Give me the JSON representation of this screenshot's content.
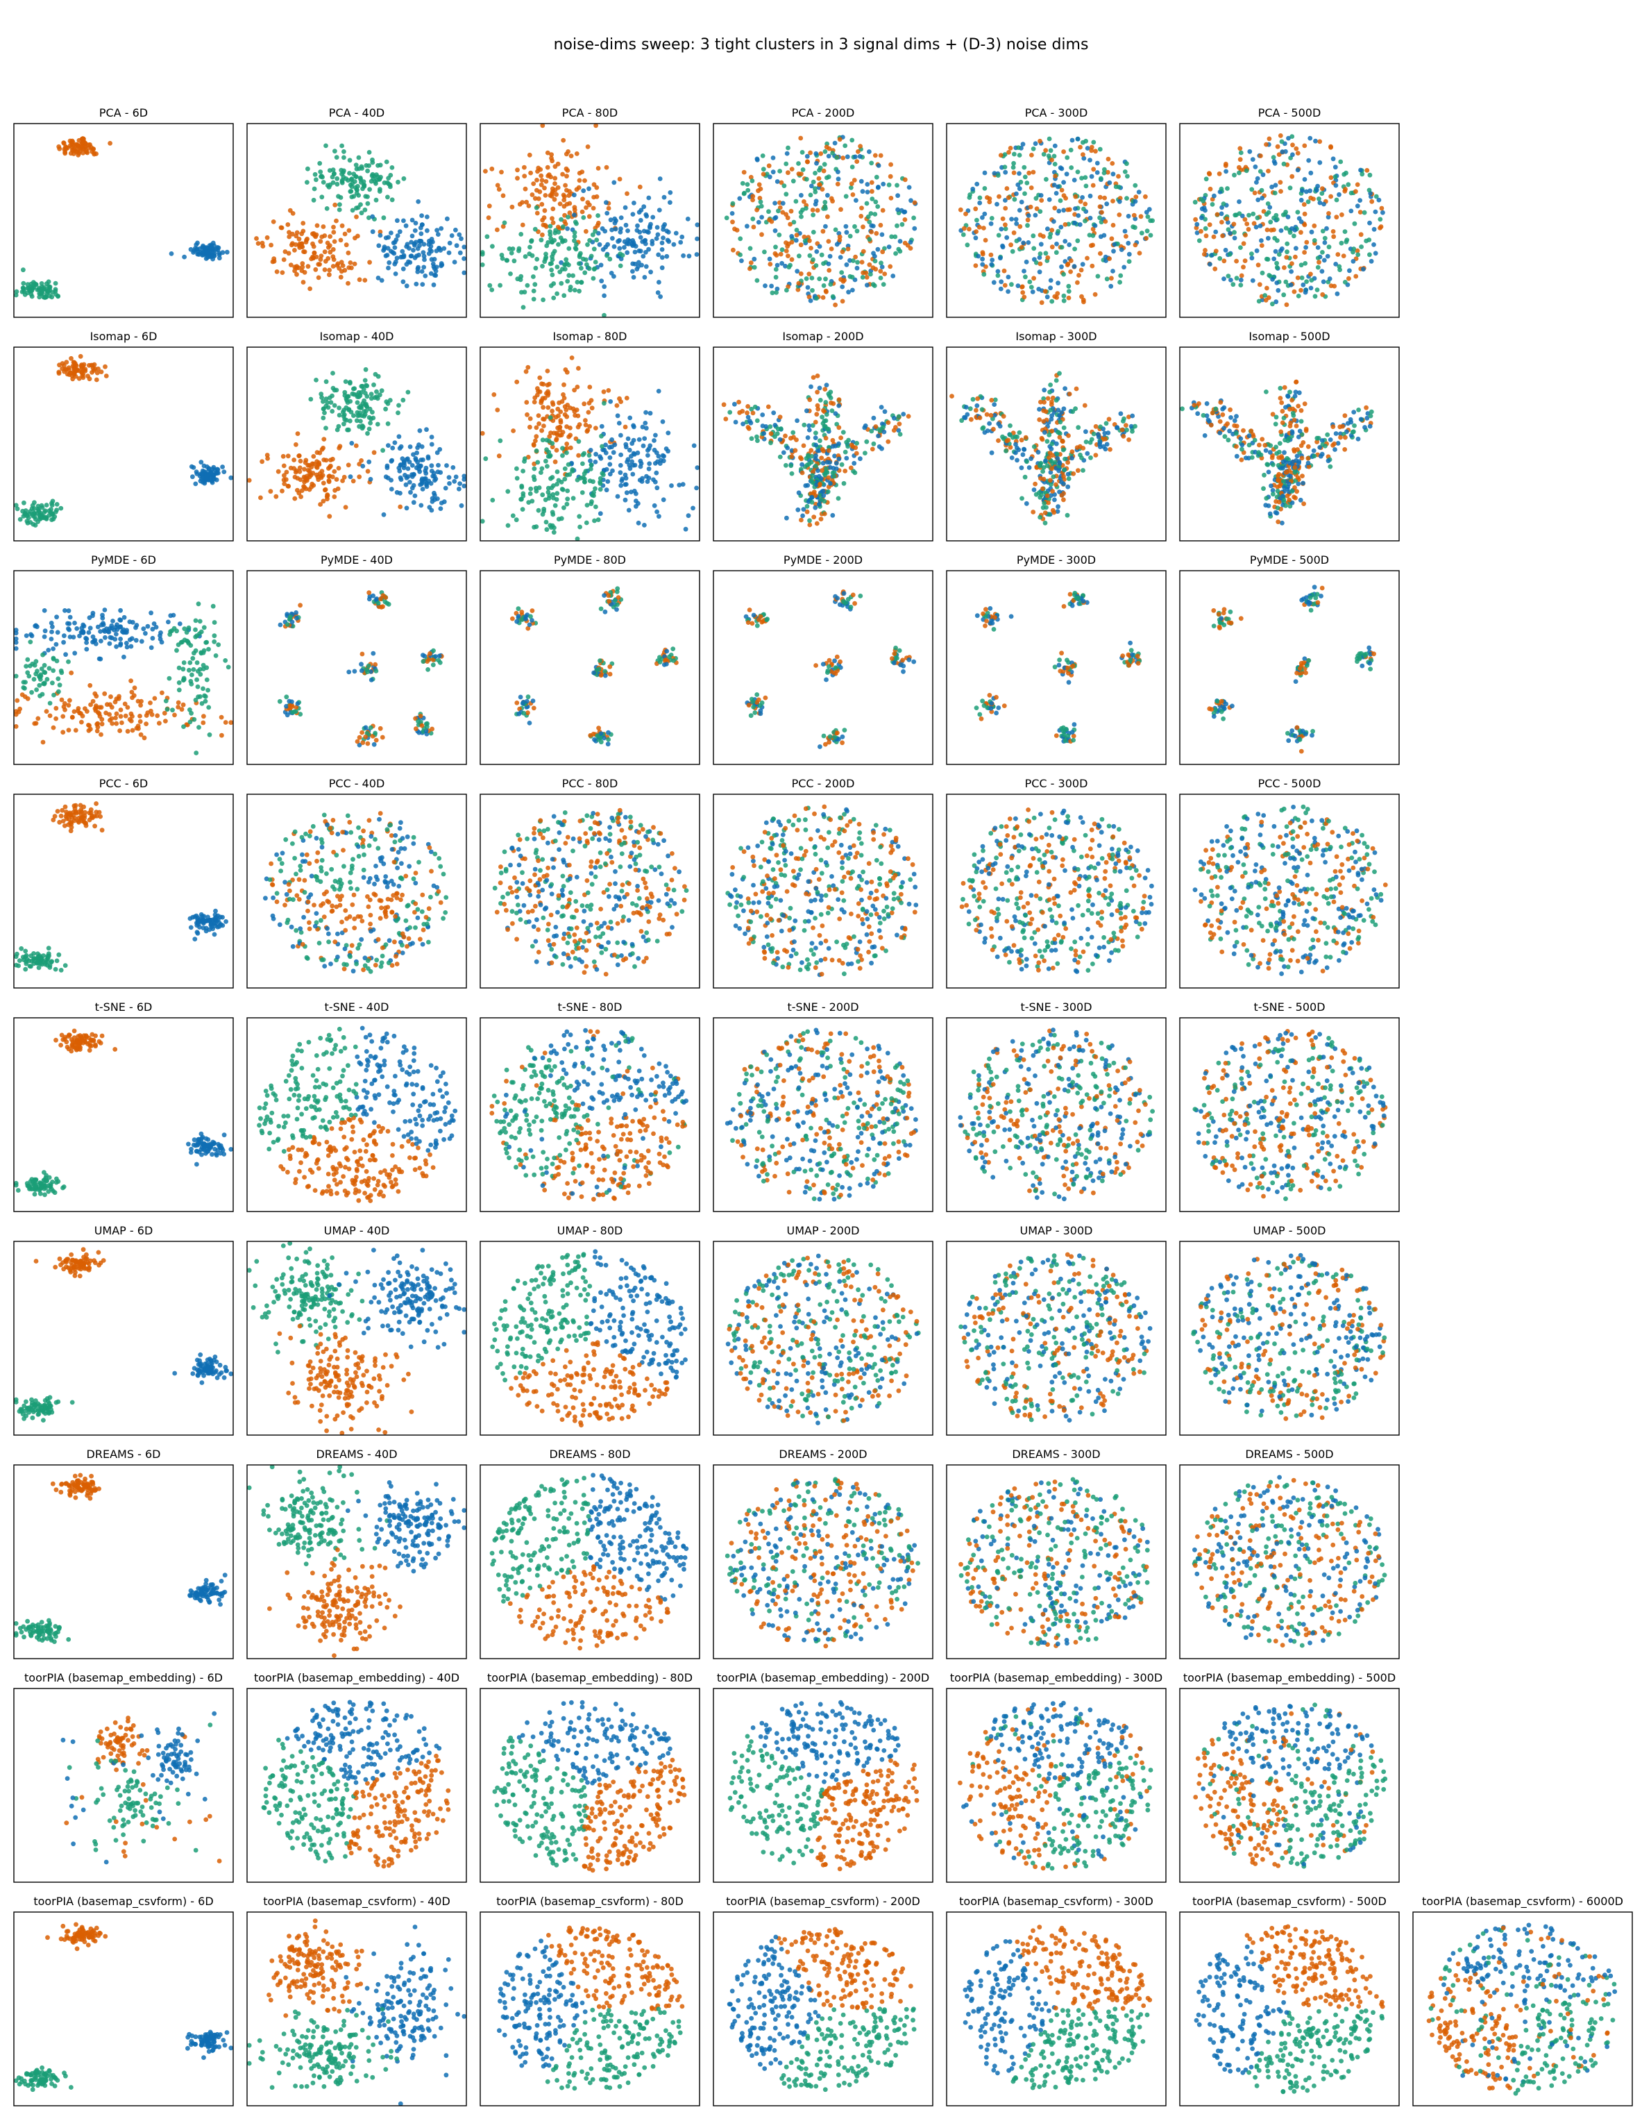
{
  "figure": {
    "title": "noise-dims sweep: 3 tight clusters in 3 signal dims + (D-3) noise dims"
  },
  "colors": {
    "c0": "#1f77b4",
    "c0_actual": "#0f6eb4",
    "c1": "#d95f02",
    "c2": "#1b9e77"
  },
  "chart_data": {
    "type": "scatter",
    "description_of_grid": "9 method rows x up to 7 dimension columns",
    "dims": [
      "6D",
      "40D",
      "80D",
      "200D",
      "300D",
      "500D",
      "6000D"
    ],
    "rows": [
      {
        "method": "PCA",
        "panels": [
          "PCA - 6D",
          "PCA - 40D",
          "PCA - 80D",
          "PCA - 200D",
          "PCA - 300D",
          "PCA - 500D"
        ]
      },
      {
        "method": "Isomap",
        "panels": [
          "Isomap - 6D",
          "Isomap - 40D",
          "Isomap - 80D",
          "Isomap - 200D",
          "Isomap - 300D",
          "Isomap - 500D"
        ]
      },
      {
        "method": "PyMDE",
        "panels": [
          "PyMDE - 6D",
          "PyMDE - 40D",
          "PyMDE - 80D",
          "PyMDE - 200D",
          "PyMDE - 300D",
          "PyMDE - 500D"
        ]
      },
      {
        "method": "PCC",
        "panels": [
          "PCC - 6D",
          "PCC - 40D",
          "PCC - 80D",
          "PCC - 200D",
          "PCC - 300D",
          "PCC - 500D"
        ]
      },
      {
        "method": "t-SNE",
        "panels": [
          "t-SNE - 6D",
          "t-SNE - 40D",
          "t-SNE - 80D",
          "t-SNE - 200D",
          "t-SNE - 300D",
          "t-SNE - 500D"
        ]
      },
      {
        "method": "UMAP",
        "panels": [
          "UMAP - 6D",
          "UMAP - 40D",
          "UMAP - 80D",
          "UMAP - 200D",
          "UMAP - 300D",
          "UMAP - 500D"
        ]
      },
      {
        "method": "DREAMS",
        "panels": [
          "DREAMS - 6D",
          "DREAMS - 40D",
          "DREAMS - 80D",
          "DREAMS - 200D",
          "DREAMS - 300D",
          "DREAMS - 500D"
        ]
      },
      {
        "method": "toorPIA (basemap_embedding)",
        "panels": [
          "toorPIA (basemap_embedding) - 6D",
          "toorPIA (basemap_embedding) - 40D",
          "toorPIA (basemap_embedding) - 80D",
          "toorPIA (basemap_embedding) - 200D",
          "toorPIA (basemap_embedding) - 300D",
          "toorPIA (basemap_embedding) - 500D"
        ]
      },
      {
        "method": "toorPIA (basemap_csvform)",
        "panels": [
          "toorPIA (basemap_csvform) - 6D",
          "toorPIA (basemap_csvform) - 40D",
          "toorPIA (basemap_csvform) - 80D",
          "toorPIA (basemap_csvform) - 200D",
          "toorPIA (basemap_csvform) - 300D",
          "toorPIA (basemap_csvform) - 500D",
          "toorPIA (basemap_csvform) - 6000D"
        ]
      }
    ],
    "pattern_shapes": [
      [
        "blobs3_wide",
        "blobs3_medium",
        "blobs3_overlap",
        "disc_mixed",
        "disc_mixed",
        "disc_mixed"
      ],
      [
        "blobs3_wide",
        "blobs3_medium",
        "blobs3_overlap",
        "branches",
        "branches",
        "branches"
      ],
      [
        "blobs3_elongated",
        "islands_7",
        "islands_6",
        "islands_6",
        "islands_6",
        "islands_6"
      ],
      [
        "blobs3_wide",
        "disc_partial",
        "disc_mixed",
        "disc_mixed",
        "disc_mixed",
        "disc_mixed"
      ],
      [
        "blobs3_wide",
        "sectors_3",
        "sectors_3_blurred",
        "disc_mixed",
        "disc_mixed",
        "disc_mixed"
      ],
      [
        "blobs3_wide",
        "blobs3_large",
        "sectors_3",
        "disc_mixed",
        "disc_mixed",
        "disc_mixed"
      ],
      [
        "blobs3_wide",
        "blobs3_large",
        "sectors_3",
        "disc_mixed",
        "disc_mixed",
        "disc_mixed"
      ],
      [
        "blobs3_spiky",
        "pinwheel_3",
        "pinwheel_3",
        "pinwheel_3",
        "pinwheel_3_blurred",
        "pinwheel_3_blurred"
      ],
      [
        "blobs3_wide",
        "blobs3_quad",
        "sectors_3_gap",
        "sectors_3_gap",
        "sectors_3_gap",
        "sectors_3_gap",
        "pinwheel_3_blurred"
      ]
    ]
  }
}
